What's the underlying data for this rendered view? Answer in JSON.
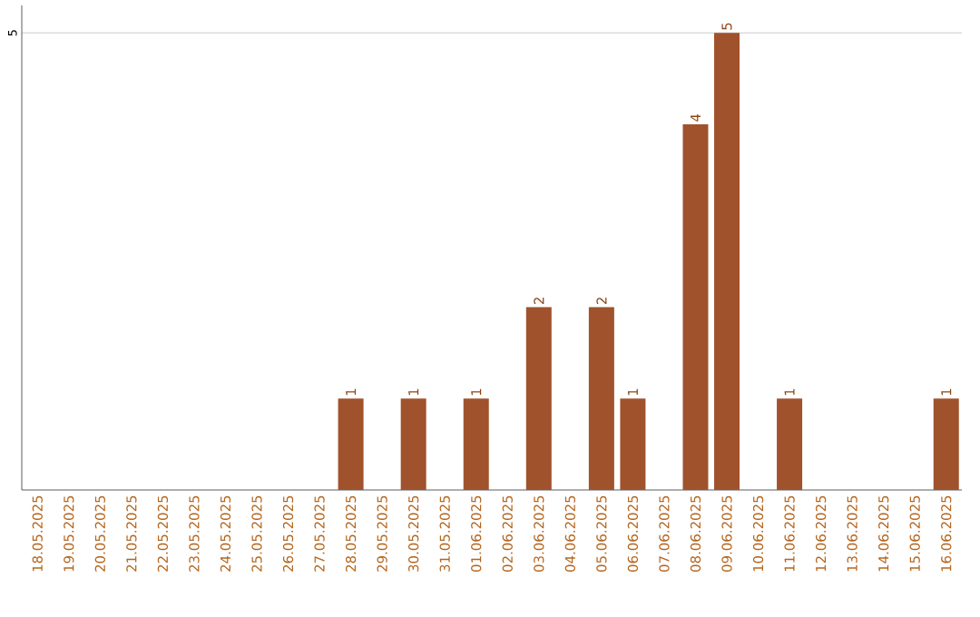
{
  "chart_data": {
    "type": "bar",
    "categories": [
      "18.05.2025",
      "19.05.2025",
      "20.05.2025",
      "21.05.2025",
      "22.05.2025",
      "23.05.2025",
      "24.05.2025",
      "25.05.2025",
      "26.05.2025",
      "27.05.2025",
      "28.05.2025",
      "29.05.2025",
      "30.05.2025",
      "31.05.2025",
      "01.06.2025",
      "02.06.2025",
      "03.06.2025",
      "04.06.2025",
      "05.06.2025",
      "06.06.2025",
      "07.06.2025",
      "08.06.2025",
      "09.06.2025",
      "10.06.2025",
      "11.06.2025",
      "12.06.2025",
      "13.06.2025",
      "14.06.2025",
      "15.06.2025",
      "16.06.2025"
    ],
    "values": [
      0,
      0,
      0,
      0,
      0,
      0,
      0,
      0,
      0,
      0,
      1,
      0,
      1,
      0,
      1,
      0,
      2,
      0,
      2,
      1,
      0,
      4,
      5,
      0,
      1,
      0,
      0,
      0,
      0,
      1
    ],
    "color": "#a0522d",
    "value_labels": [
      null,
      null,
      null,
      null,
      null,
      null,
      null,
      null,
      null,
      null,
      "1",
      null,
      "1",
      null,
      "1",
      null,
      "2",
      null,
      "2",
      "1",
      null,
      "4",
      "5",
      null,
      "1",
      null,
      null,
      null,
      null,
      "1"
    ],
    "ylim": [
      0,
      5.3
    ],
    "yticks": [
      5
    ],
    "grid": "y"
  }
}
